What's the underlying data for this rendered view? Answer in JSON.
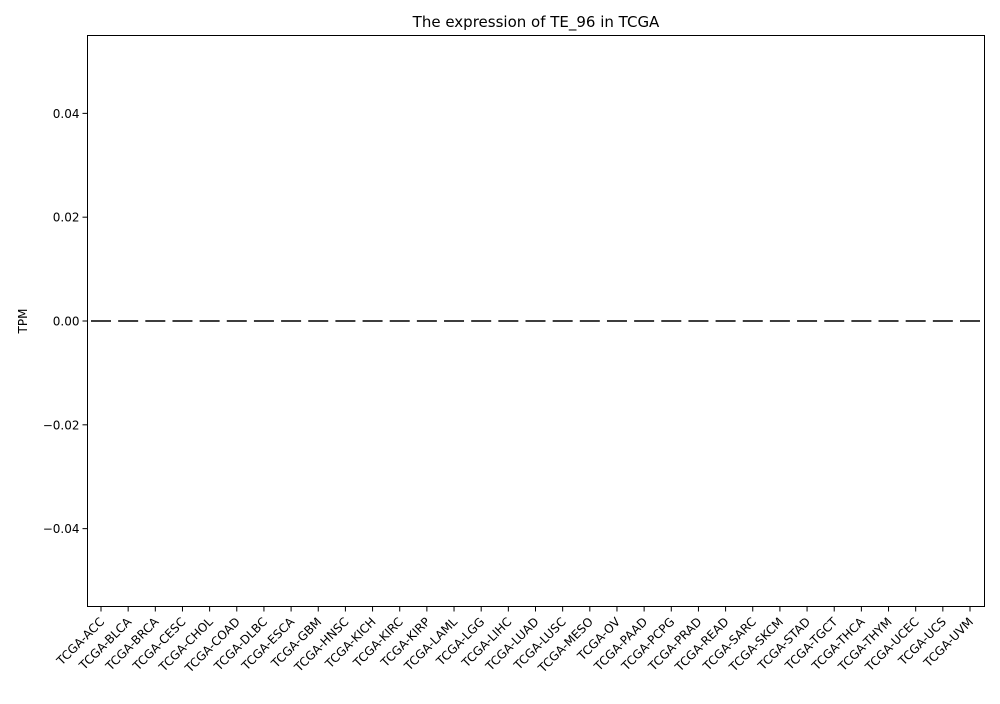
{
  "chart_data": {
    "type": "box",
    "title": "The expression of TE_96 in TCGA",
    "xlabel": "",
    "ylabel": "TPM",
    "ylim": [
      -0.055,
      0.055
    ],
    "yticks": [
      {
        "value": 0.04,
        "label": "0.04"
      },
      {
        "value": 0.02,
        "label": "0.02"
      },
      {
        "value": 0.0,
        "label": "0.00"
      },
      {
        "value": -0.02,
        "label": "−0.02"
      },
      {
        "value": -0.04,
        "label": "−0.04"
      }
    ],
    "categories": [
      "TCGA-ACC",
      "TCGA-BLCA",
      "TCGA-BRCA",
      "TCGA-CESC",
      "TCGA-CHOL",
      "TCGA-COAD",
      "TCGA-DLBC",
      "TCGA-ESCA",
      "TCGA-GBM",
      "TCGA-HNSC",
      "TCGA-KICH",
      "TCGA-KIRC",
      "TCGA-KIRP",
      "TCGA-LAML",
      "TCGA-LGG",
      "TCGA-LIHC",
      "TCGA-LUAD",
      "TCGA-LUSC",
      "TCGA-MESO",
      "TCGA-OV",
      "TCGA-PAAD",
      "TCGA-PCPG",
      "TCGA-PRAD",
      "TCGA-READ",
      "TCGA-SARC",
      "TCGA-SKCM",
      "TCGA-STAD",
      "TCGA-TGCT",
      "TCGA-THCA",
      "TCGA-THYM",
      "TCGA-UCEC",
      "TCGA-UCS",
      "TCGA-UVM"
    ],
    "values": [
      0,
      0,
      0,
      0,
      0,
      0,
      0,
      0,
      0,
      0,
      0,
      0,
      0,
      0,
      0,
      0,
      0,
      0,
      0,
      0,
      0,
      0,
      0,
      0,
      0,
      0,
      0,
      0,
      0,
      0,
      0,
      0,
      0
    ],
    "box_color": "#3d3d3d",
    "grid": false
  }
}
